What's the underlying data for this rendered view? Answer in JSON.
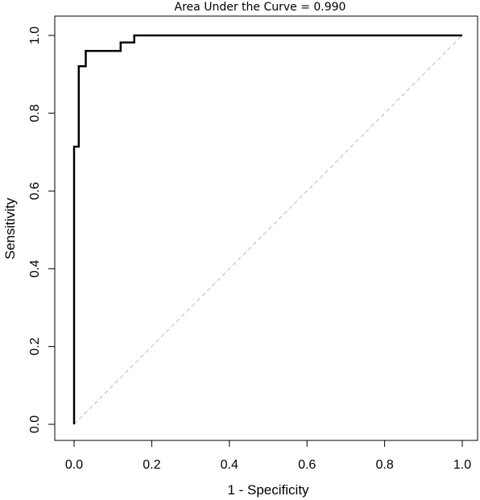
{
  "chart_data": {
    "type": "line",
    "title": "Area Under the Curve = 0.990",
    "xlabel": "1 - Specificity",
    "ylabel": "Sensitivity",
    "xlim": [
      0,
      1
    ],
    "ylim": [
      0,
      1
    ],
    "xticks": [
      "0.0",
      "0.2",
      "0.4",
      "0.6",
      "0.8",
      "1.0"
    ],
    "yticks": [
      "0.0",
      "0.2",
      "0.4",
      "0.6",
      "0.8",
      "1.0"
    ],
    "xtick_values": [
      0,
      0.2,
      0.4,
      0.6,
      0.8,
      1.0
    ],
    "ytick_values": [
      0,
      0.2,
      0.4,
      0.6,
      0.8,
      1.0
    ],
    "grid": false,
    "series": [
      {
        "style": "solid",
        "color": "#000000",
        "x": [
          0.0,
          0.0,
          0.012,
          0.012,
          0.018,
          0.018,
          0.03,
          0.03,
          0.12,
          0.12,
          0.155,
          0.155,
          1.0
        ],
        "y": [
          0.0,
          0.714,
          0.714,
          0.921,
          0.921,
          0.921,
          0.921,
          0.96,
          0.96,
          0.982,
          0.982,
          1.0,
          1.0
        ]
      },
      {
        "style": "dashed",
        "color": "#bbbbbb",
        "x": [
          0.0,
          1.0
        ],
        "y": [
          0.0,
          1.0
        ]
      }
    ]
  }
}
